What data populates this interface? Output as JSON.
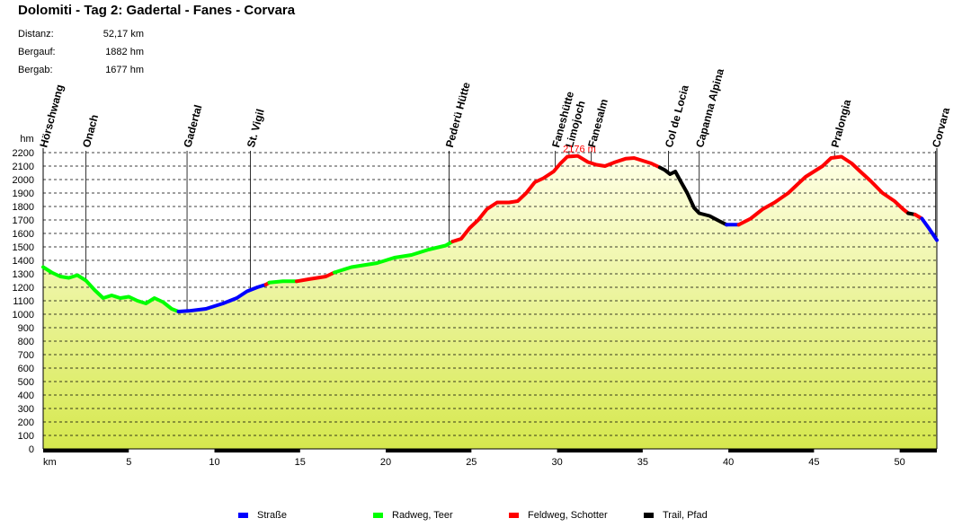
{
  "title": "Dolomiti - Tag 2: Gadertal - Fanes - Corvara",
  "stats": [
    {
      "label": "Distanz:",
      "value": "52,17 km"
    },
    {
      "label": "Bergauf:",
      "value": "1882 hm"
    },
    {
      "label": "Bergab:",
      "value": "1677 hm"
    }
  ],
  "legend": [
    {
      "label": "Straße",
      "color": "#0000ff"
    },
    {
      "label": "Radweg, Teer",
      "color": "#00ff00"
    },
    {
      "label": "Feldweg, Schotter",
      "color": "#ff0000"
    },
    {
      "label": "Trail, Pfad",
      "color": "#000000"
    }
  ],
  "chart_data": {
    "type": "area",
    "xlabel": "km",
    "ylabel": "hm",
    "xlim": [
      0,
      52.17
    ],
    "ylim": [
      0,
      2200
    ],
    "x_ticks": [
      5,
      10,
      15,
      20,
      25,
      30,
      35,
      40,
      45,
      50
    ],
    "y_ticks": [
      0,
      100,
      200,
      300,
      400,
      500,
      600,
      700,
      800,
      900,
      1000,
      1100,
      1200,
      1300,
      1400,
      1500,
      1600,
      1700,
      1800,
      1900,
      2000,
      2100,
      2200
    ],
    "grid": true,
    "fill_gradient": [
      "#ffffe6",
      "#d6e84e"
    ],
    "max_annotation": {
      "x": 31.2,
      "y": 2176,
      "label": "2176 m"
    },
    "waypoints": [
      {
        "km": 0.0,
        "name": "Hörschwang"
      },
      {
        "km": 2.5,
        "name": "Onach"
      },
      {
        "km": 8.4,
        "name": "Gadertal"
      },
      {
        "km": 12.1,
        "name": "St. Vigil"
      },
      {
        "km": 23.7,
        "name": "Pederü Hütte"
      },
      {
        "km": 29.9,
        "name": "Faneshütte"
      },
      {
        "km": 30.7,
        "name": "Limojoch"
      },
      {
        "km": 32.0,
        "name": "Fanesalm"
      },
      {
        "km": 36.5,
        "name": "Col de Locia"
      },
      {
        "km": 38.3,
        "name": "Capanna Alpina"
      },
      {
        "km": 46.2,
        "name": "Pralongia"
      },
      {
        "km": 52.1,
        "name": "Corvara"
      }
    ],
    "series": [
      {
        "surface": "Radweg, Teer",
        "color": "#00ff00",
        "points": [
          [
            0,
            1350
          ],
          [
            0.5,
            1310
          ],
          [
            1.0,
            1280
          ],
          [
            1.5,
            1270
          ],
          [
            2.0,
            1290
          ],
          [
            2.5,
            1250
          ],
          [
            3.0,
            1180
          ],
          [
            3.5,
            1120
          ],
          [
            4.0,
            1140
          ],
          [
            4.5,
            1120
          ],
          [
            5.0,
            1130
          ],
          [
            5.5,
            1100
          ],
          [
            6.0,
            1080
          ],
          [
            6.5,
            1120
          ],
          [
            7.0,
            1090
          ],
          [
            7.5,
            1040
          ],
          [
            7.9,
            1020
          ]
        ]
      },
      {
        "surface": "Straße",
        "color": "#0000ff",
        "points": [
          [
            7.9,
            1020
          ],
          [
            8.5,
            1025
          ],
          [
            9.5,
            1040
          ],
          [
            10.5,
            1080
          ],
          [
            11.3,
            1120
          ],
          [
            11.9,
            1170
          ],
          [
            12.5,
            1200
          ],
          [
            13.0,
            1220
          ]
        ]
      },
      {
        "surface": "Feldweg, Schotter",
        "color": "#ff0000",
        "points": [
          [
            13.0,
            1220
          ],
          [
            13.2,
            1235
          ]
        ]
      },
      {
        "surface": "Radweg, Teer",
        "color": "#00ff00",
        "points": [
          [
            13.2,
            1235
          ],
          [
            14.0,
            1245
          ],
          [
            14.8,
            1245
          ]
        ]
      },
      {
        "surface": "Feldweg, Schotter",
        "color": "#ff0000",
        "points": [
          [
            14.8,
            1245
          ],
          [
            15.5,
            1260
          ],
          [
            16.5,
            1280
          ],
          [
            17.0,
            1310
          ]
        ]
      },
      {
        "surface": "Radweg, Teer",
        "color": "#00ff00",
        "points": [
          [
            17.0,
            1310
          ],
          [
            18.0,
            1350
          ],
          [
            19.5,
            1380
          ],
          [
            20.5,
            1420
          ],
          [
            21.5,
            1440
          ],
          [
            22.5,
            1480
          ],
          [
            23.5,
            1510
          ],
          [
            23.9,
            1540
          ]
        ]
      },
      {
        "surface": "Feldweg, Schotter",
        "color": "#ff0000",
        "points": [
          [
            23.9,
            1540
          ],
          [
            24.4,
            1560
          ],
          [
            24.9,
            1640
          ],
          [
            25.4,
            1700
          ],
          [
            25.9,
            1780
          ],
          [
            26.5,
            1830
          ],
          [
            27.2,
            1830
          ],
          [
            27.7,
            1840
          ],
          [
            28.2,
            1900
          ],
          [
            28.7,
            1980
          ],
          [
            29.2,
            2010
          ],
          [
            29.8,
            2060
          ],
          [
            30.2,
            2120
          ],
          [
            30.6,
            2170
          ],
          [
            31.2,
            2176
          ],
          [
            31.8,
            2130
          ],
          [
            32.3,
            2110
          ],
          [
            32.8,
            2100
          ],
          [
            33.4,
            2130
          ],
          [
            34.0,
            2155
          ],
          [
            34.5,
            2160
          ],
          [
            35.0,
            2140
          ],
          [
            35.5,
            2120
          ],
          [
            36.0,
            2090
          ]
        ]
      },
      {
        "surface": "Trail, Pfad",
        "color": "#000000",
        "points": [
          [
            36.0,
            2090
          ],
          [
            36.3,
            2070
          ],
          [
            36.6,
            2040
          ],
          [
            36.9,
            2060
          ],
          [
            37.2,
            1990
          ],
          [
            37.6,
            1900
          ],
          [
            38.0,
            1790
          ],
          [
            38.3,
            1750
          ],
          [
            38.9,
            1730
          ],
          [
            39.5,
            1690
          ],
          [
            39.9,
            1665
          ]
        ]
      },
      {
        "surface": "Straße",
        "color": "#0000ff",
        "points": [
          [
            39.9,
            1665
          ],
          [
            40.6,
            1665
          ]
        ]
      },
      {
        "surface": "Feldweg, Schotter",
        "color": "#ff0000",
        "points": [
          [
            40.6,
            1665
          ],
          [
            41.3,
            1710
          ],
          [
            42.0,
            1780
          ],
          [
            42.7,
            1830
          ],
          [
            43.5,
            1900
          ],
          [
            44.0,
            1960
          ],
          [
            44.5,
            2020
          ],
          [
            45.0,
            2060
          ],
          [
            45.5,
            2100
          ],
          [
            46.0,
            2160
          ],
          [
            46.6,
            2170
          ],
          [
            47.2,
            2120
          ],
          [
            47.7,
            2060
          ],
          [
            48.3,
            1990
          ],
          [
            49.0,
            1900
          ],
          [
            49.7,
            1840
          ],
          [
            50.2,
            1780
          ],
          [
            50.5,
            1750
          ]
        ]
      },
      {
        "surface": "Trail, Pfad",
        "color": "#000000",
        "points": [
          [
            50.5,
            1750
          ],
          [
            50.9,
            1740
          ]
        ]
      },
      {
        "surface": "Feldweg, Schotter",
        "color": "#ff0000",
        "points": [
          [
            50.9,
            1740
          ],
          [
            51.3,
            1710
          ]
        ]
      },
      {
        "surface": "Straße",
        "color": "#0000ff",
        "points": [
          [
            51.3,
            1710
          ],
          [
            51.7,
            1640
          ],
          [
            52.17,
            1550
          ]
        ]
      }
    ]
  }
}
